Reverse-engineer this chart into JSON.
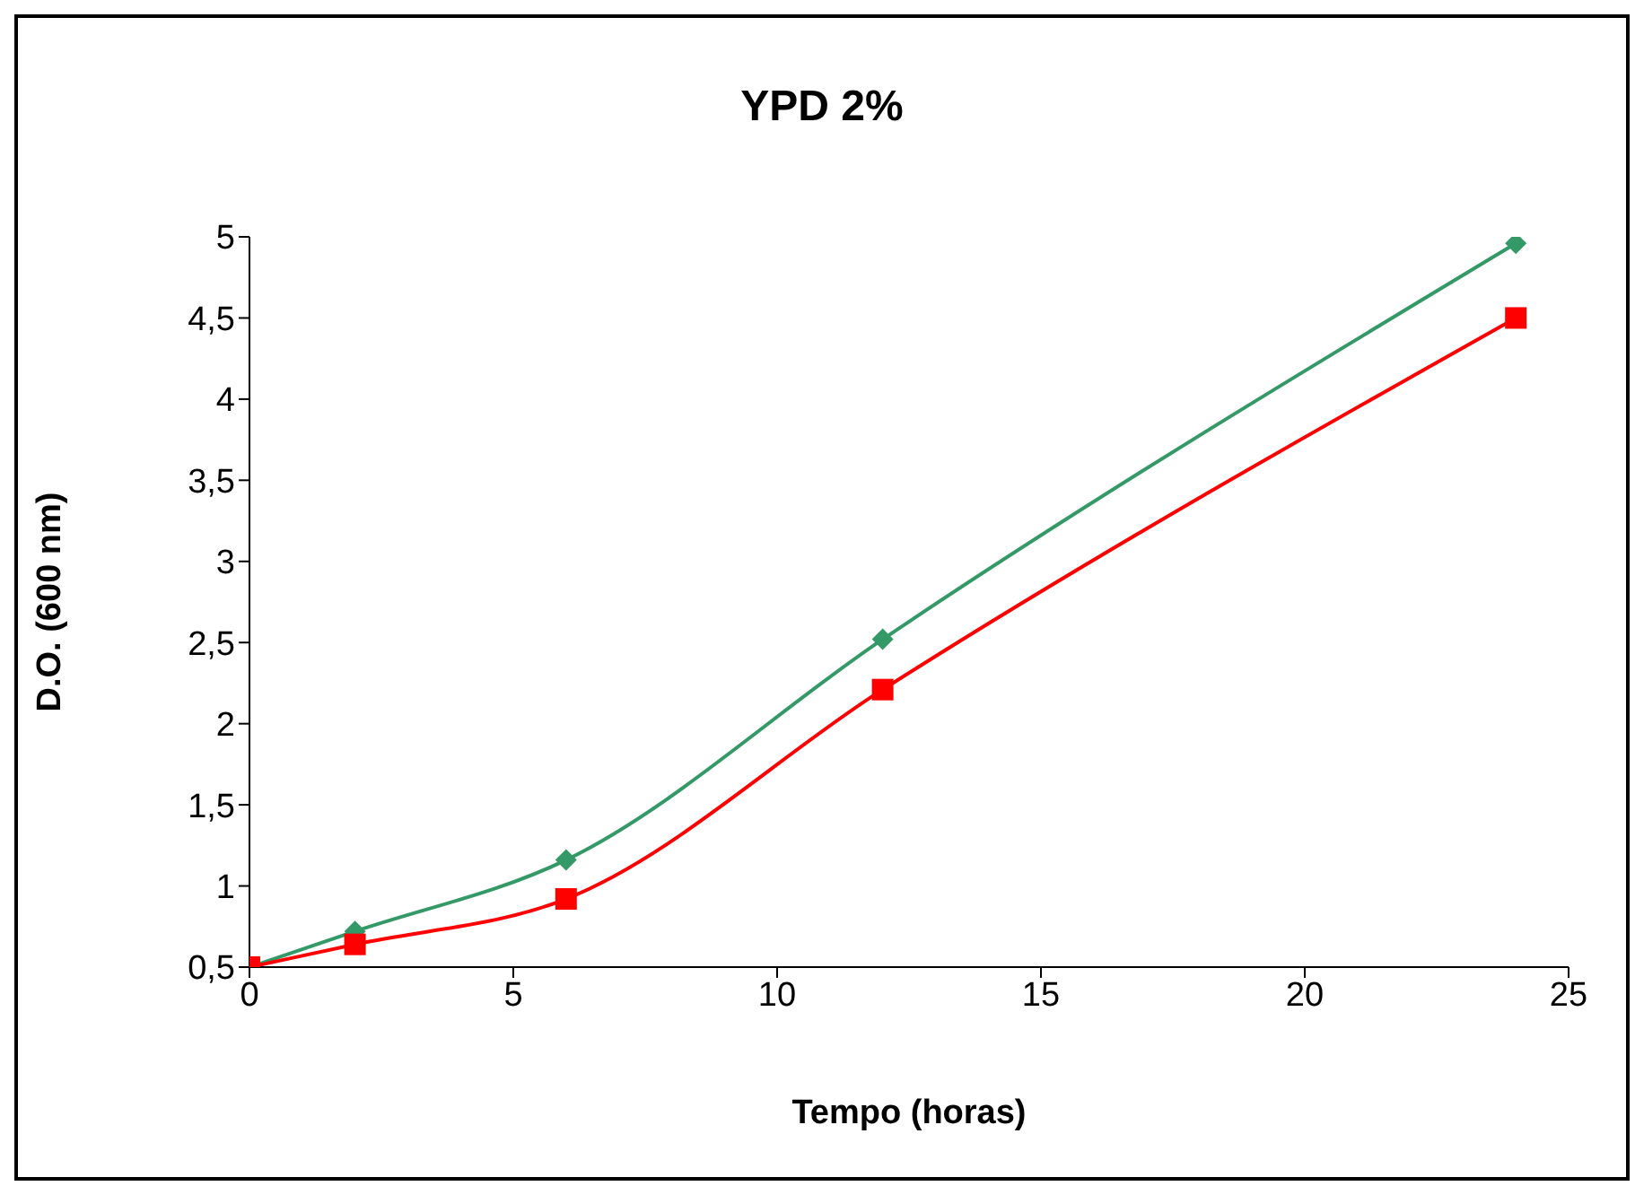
{
  "chart_data": {
    "type": "line",
    "title": "YPD 2%",
    "xlabel": "Tempo (horas)",
    "ylabel": "D.O. (600 nm)",
    "x": [
      0,
      2,
      6,
      12,
      24
    ],
    "series": [
      {
        "color": "#339966",
        "values": [
          0.5,
          0.72,
          1.16,
          2.52,
          4.96
        ],
        "marker": "diamond"
      },
      {
        "color": "#ff0000",
        "values": [
          0.5,
          0.64,
          0.92,
          2.21,
          4.5
        ],
        "marker": "square"
      }
    ],
    "xlim": [
      0,
      25
    ],
    "xticks": [
      0,
      5,
      10,
      15,
      20,
      25
    ],
    "ylim": [
      0.5,
      5
    ],
    "yticks": [
      {
        "value": 0.5,
        "label": "0,5"
      },
      1,
      {
        "value": 1.5,
        "label": "1,5"
      },
      2,
      {
        "value": 2.5,
        "label": "2,5"
      },
      3,
      {
        "value": 3.5,
        "label": "3,5"
      },
      4,
      {
        "value": 4.5,
        "label": "4,5"
      },
      5
    ],
    "grid": false,
    "legend": false
  }
}
